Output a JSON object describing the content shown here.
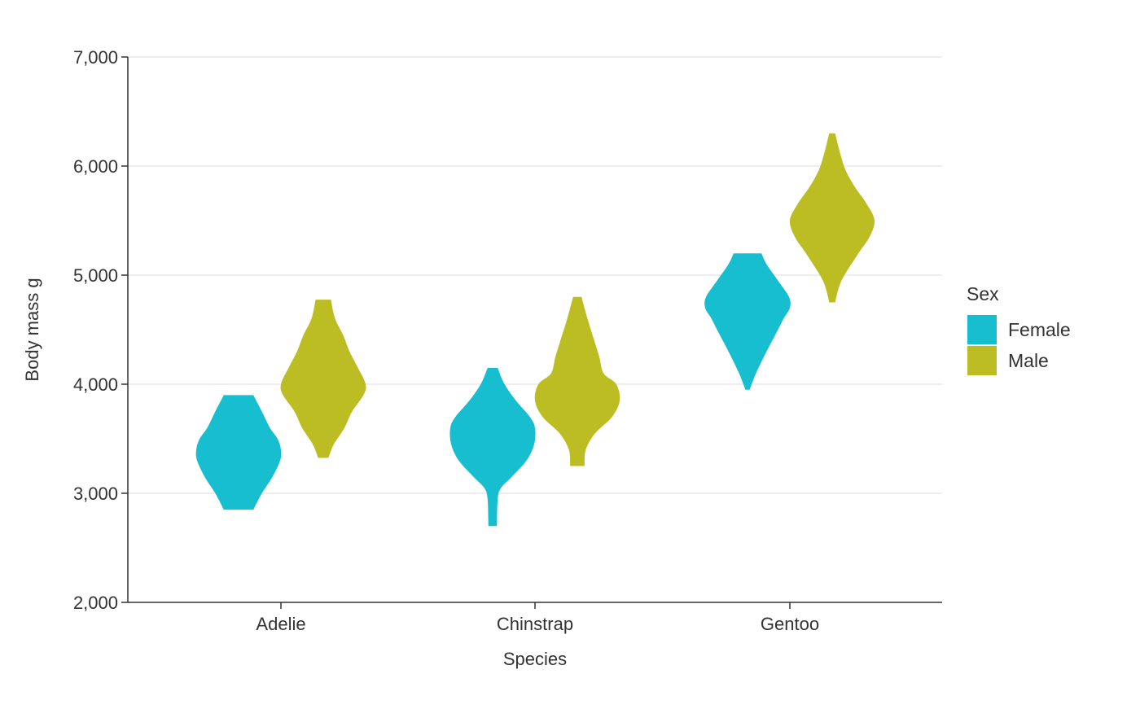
{
  "chart_data": {
    "type": "violin",
    "xlabel": "Species",
    "ylabel": "Body mass g",
    "ylim": [
      2000,
      7000
    ],
    "yticks": [
      2000,
      3000,
      4000,
      5000,
      6000,
      7000
    ],
    "ytick_labels": [
      "2,000",
      "3,000",
      "4,000",
      "5,000",
      "6,000",
      "7,000"
    ],
    "categories": [
      "Adelie",
      "Chinstrap",
      "Gentoo"
    ],
    "grid": "horizontal",
    "legend": {
      "title": "Sex",
      "position": "right",
      "entries": [
        {
          "label": "Female",
          "color": "#17becf"
        },
        {
          "label": "Male",
          "color": "#bcbd22"
        }
      ]
    },
    "series": [
      {
        "name": "Female",
        "color": "#17becf",
        "violins": [
          {
            "category": "Adelie",
            "min": 2850,
            "max": 3900,
            "profile": [
              [
                2850,
                0.35
              ],
              [
                3000,
                0.55
              ],
              [
                3150,
                0.8
              ],
              [
                3300,
                0.98
              ],
              [
                3400,
                1.0
              ],
              [
                3500,
                0.92
              ],
              [
                3600,
                0.74
              ],
              [
                3750,
                0.55
              ],
              [
                3900,
                0.35
              ]
            ]
          },
          {
            "category": "Chinstrap",
            "min": 2700,
            "max": 4150,
            "profile": [
              [
                2700,
                0.1
              ],
              [
                2950,
                0.12
              ],
              [
                3050,
                0.2
              ],
              [
                3150,
                0.45
              ],
              [
                3300,
                0.8
              ],
              [
                3450,
                0.98
              ],
              [
                3600,
                1.0
              ],
              [
                3700,
                0.88
              ],
              [
                3850,
                0.55
              ],
              [
                4000,
                0.28
              ],
              [
                4150,
                0.12
              ]
            ]
          },
          {
            "category": "Gentoo",
            "min": 3950,
            "max": 5200,
            "profile": [
              [
                3950,
                0.05
              ],
              [
                4100,
                0.2
              ],
              [
                4300,
                0.45
              ],
              [
                4500,
                0.72
              ],
              [
                4600,
                0.85
              ],
              [
                4700,
                1.0
              ],
              [
                4800,
                0.98
              ],
              [
                4950,
                0.72
              ],
              [
                5100,
                0.45
              ],
              [
                5200,
                0.33
              ]
            ]
          }
        ]
      },
      {
        "name": "Male",
        "color": "#bcbd22",
        "violins": [
          {
            "category": "Adelie",
            "min": 3325,
            "max": 4775,
            "profile": [
              [
                3325,
                0.12
              ],
              [
                3450,
                0.25
              ],
              [
                3600,
                0.5
              ],
              [
                3750,
                0.68
              ],
              [
                3900,
                0.95
              ],
              [
                4000,
                1.0
              ],
              [
                4150,
                0.82
              ],
              [
                4300,
                0.62
              ],
              [
                4450,
                0.47
              ],
              [
                4600,
                0.28
              ],
              [
                4775,
                0.18
              ]
            ]
          },
          {
            "category": "Chinstrap",
            "min": 3250,
            "max": 4800,
            "profile": [
              [
                3250,
                0.17
              ],
              [
                3400,
                0.2
              ],
              [
                3550,
                0.42
              ],
              [
                3700,
                0.82
              ],
              [
                3850,
                1.0
              ],
              [
                4000,
                0.92
              ],
              [
                4100,
                0.62
              ],
              [
                4250,
                0.52
              ],
              [
                4400,
                0.4
              ],
              [
                4600,
                0.24
              ],
              [
                4800,
                0.1
              ]
            ]
          },
          {
            "category": "Gentoo",
            "min": 4750,
            "max": 6300,
            "profile": [
              [
                4750,
                0.07
              ],
              [
                4950,
                0.22
              ],
              [
                5200,
                0.62
              ],
              [
                5350,
                0.88
              ],
              [
                5500,
                1.0
              ],
              [
                5650,
                0.82
              ],
              [
                5800,
                0.55
              ],
              [
                5950,
                0.33
              ],
              [
                6100,
                0.2
              ],
              [
                6300,
                0.07
              ]
            ]
          }
        ]
      }
    ]
  }
}
